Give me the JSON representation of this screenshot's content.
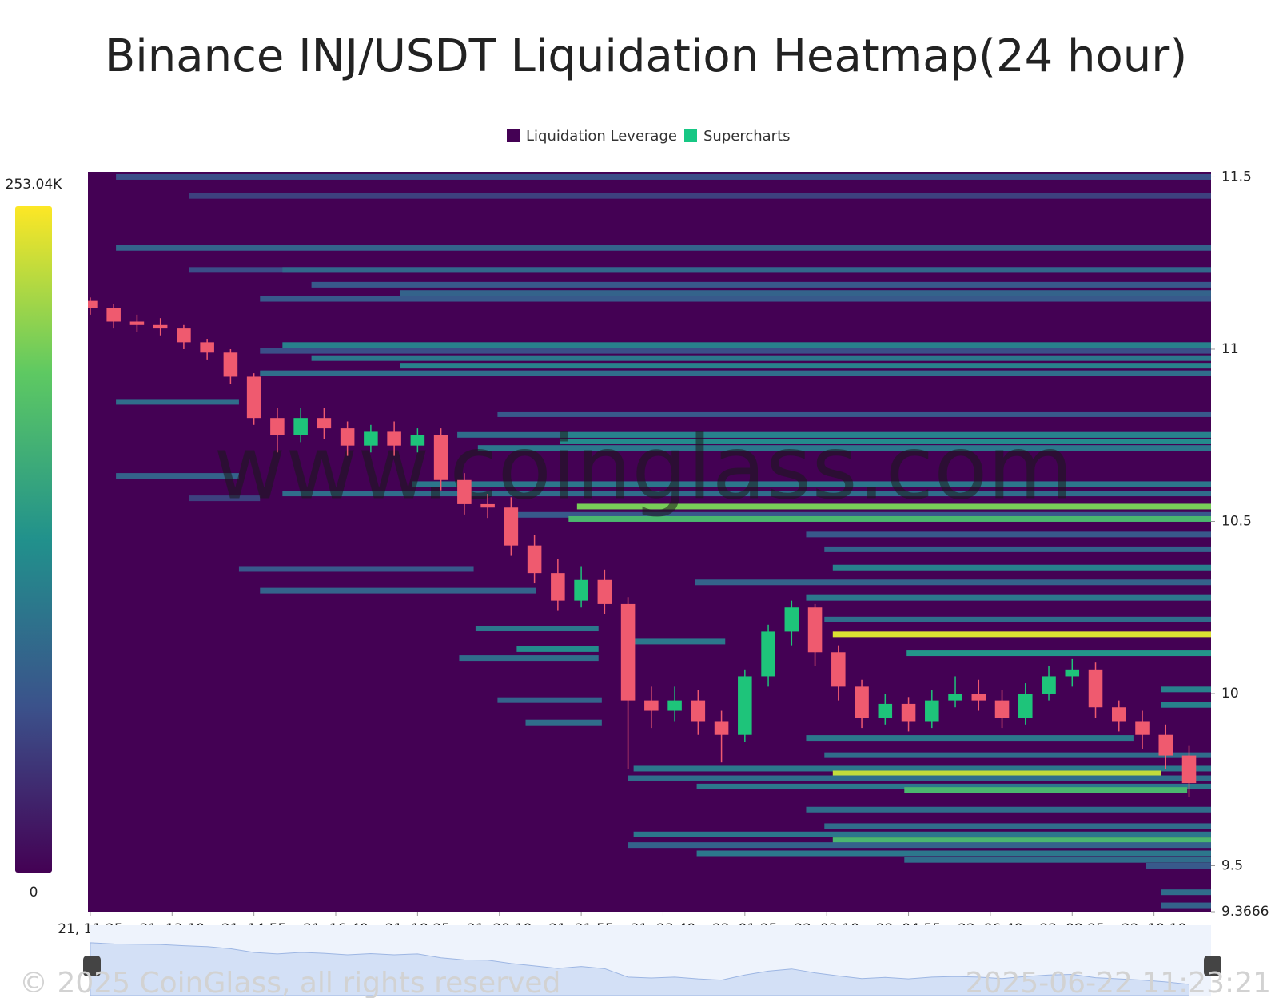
{
  "chart_data": {
    "type": "heatmap",
    "title": "Binance INJ/USDT Liquidation Heatmap(24 hour)",
    "watermark": "www.coinglass.com",
    "copyright": "© 2025 CoinGlass, all rights reserved",
    "timestamp": "2025-06-22 11:23:21",
    "xlim": [
      -0.05,
      23.97
    ],
    "xticks": [
      {
        "value": 0,
        "label": "21, 11:25"
      },
      {
        "value": 1.75,
        "label": "21, 13:10"
      },
      {
        "value": 3.5,
        "label": "21, 14:55"
      },
      {
        "value": 5.25,
        "label": "21, 16:40"
      },
      {
        "value": 7,
        "label": "21, 18:25"
      },
      {
        "value": 8.75,
        "label": "21, 20:10"
      },
      {
        "value": 10.5,
        "label": "21, 21:55"
      },
      {
        "value": 12.25,
        "label": "21, 23:40"
      },
      {
        "value": 14,
        "label": "22, 01:25"
      },
      {
        "value": 15.75,
        "label": "22, 03:10"
      },
      {
        "value": 17.5,
        "label": "22, 04:55"
      },
      {
        "value": 19.25,
        "label": "22, 06:40"
      },
      {
        "value": 21,
        "label": "22, 08:25"
      },
      {
        "value": 22.75,
        "label": "22, 10:10"
      }
    ],
    "ylim": [
      9.3666,
      11.515
    ],
    "yticks": [
      11.5,
      11,
      10.5,
      10,
      9.5,
      9.3666
    ],
    "colorbar": {
      "ticks": [
        0,
        {
          "value": 253040,
          "label": "253.04K"
        }
      ],
      "colorscale": [
        "#440154",
        "#3b528b",
        "#21918c",
        "#5ec962",
        "#fde725"
      ]
    },
    "series": [
      {
        "name": "Liquidation Leverage",
        "color": "#440154",
        "y": [
          11.5,
          11.445,
          11.294,
          11.23,
          11.23,
          11.187,
          11.163,
          11.146,
          11.012,
          10.995,
          10.974,
          10.952,
          10.93,
          10.847,
          10.811,
          10.751,
          10.751,
          10.732,
          10.713,
          10.632,
          10.608,
          10.581,
          10.567,
          10.543,
          10.519,
          10.507,
          10.462,
          10.419,
          10.366,
          10.362,
          10.323,
          10.299,
          10.278,
          10.215,
          10.189,
          10.172,
          10.151,
          10.129,
          10.117,
          10.103,
          10.012,
          9.981,
          9.967,
          9.916,
          9.871,
          9.821,
          9.782,
          9.768,
          9.754,
          9.73,
          9.72,
          9.663,
          9.615,
          9.591,
          9.574,
          9.56,
          9.536,
          9.517,
          9.5,
          9.423,
          9.385
        ],
        "x0": [
          0.55,
          2.12,
          0.55,
          2.12,
          4.11,
          4.73,
          6.63,
          3.63,
          4.11,
          3.63,
          4.73,
          6.63,
          3.63,
          0.55,
          8.71,
          7.85,
          10.05,
          10.05,
          8.29,
          0.55,
          6.88,
          4.11,
          2.12,
          10.41,
          9.12,
          10.23,
          15.31,
          15.7,
          15.88,
          3.18,
          12.93,
          3.63,
          15.31,
          15.7,
          8.24,
          15.88,
          11.62,
          9.12,
          17.46,
          7.89,
          22.9,
          8.71,
          22.9,
          9.31,
          15.31,
          15.7,
          11.62,
          15.88,
          11.5,
          12.97,
          17.41,
          15.31,
          15.7,
          11.62,
          15.88,
          11.5,
          12.97,
          17.41,
          22.58,
          22.9,
          22.9
        ],
        "x1": [
          23.97,
          23.97,
          23.97,
          23.97,
          23.97,
          23.97,
          23.97,
          23.97,
          23.97,
          23.97,
          23.97,
          23.97,
          23.97,
          3.18,
          23.97,
          23.97,
          23.97,
          23.97,
          23.97,
          3.18,
          23.97,
          23.97,
          3.63,
          23.97,
          23.97,
          23.97,
          23.97,
          23.97,
          23.97,
          8.2,
          23.97,
          9.53,
          23.97,
          23.97,
          10.87,
          23.97,
          13.58,
          10.87,
          23.97,
          10.87,
          23.97,
          10.94,
          23.97,
          10.94,
          22.31,
          23.97,
          23.97,
          22.9,
          23.97,
          23.97,
          23.46,
          23.97,
          23.97,
          23.97,
          23.97,
          23.97,
          23.97,
          23.97,
          23.97,
          23.97,
          23.97
        ],
        "values": [
          60000,
          50000,
          80000,
          60000,
          85000,
          70000,
          80000,
          70000,
          110000,
          60000,
          100000,
          110000,
          90000,
          90000,
          70000,
          90000,
          110000,
          120000,
          100000,
          80000,
          100000,
          90000,
          50000,
          200000,
          70000,
          170000,
          70000,
          80000,
          110000,
          70000,
          80000,
          80000,
          100000,
          90000,
          100000,
          240000,
          100000,
          120000,
          130000,
          90000,
          110000,
          80000,
          110000,
          90000,
          100000,
          90000,
          100000,
          230000,
          90000,
          100000,
          170000,
          90000,
          90000,
          100000,
          170000,
          80000,
          100000,
          90000,
          70000,
          90000,
          80000
        ]
      },
      {
        "name": "Supercharts",
        "color": "#17c784",
        "up_color": "#1ec47a",
        "down_color": "#ef5a6f",
        "x": [
          0,
          0.5,
          1,
          1.5,
          2,
          2.5,
          3,
          3.5,
          4,
          4.5,
          5,
          5.5,
          6,
          6.5,
          7,
          7.5,
          8,
          8.5,
          9,
          9.5,
          10,
          10.5,
          11,
          11.5,
          12,
          12.5,
          13,
          13.5,
          14,
          14.5,
          15,
          15.5,
          16,
          16.5,
          17,
          17.5,
          18,
          18.5,
          19,
          19.5,
          20,
          20.5,
          21,
          21.5,
          22,
          22.5,
          23,
          23.5
        ],
        "open": [
          11.14,
          11.12,
          11.08,
          11.07,
          11.06,
          11.02,
          10.99,
          10.92,
          10.8,
          10.75,
          10.8,
          10.77,
          10.72,
          10.76,
          10.72,
          10.75,
          10.62,
          10.55,
          10.54,
          10.43,
          10.35,
          10.27,
          10.33,
          10.26,
          9.98,
          9.95,
          9.98,
          9.92,
          9.88,
          10.05,
          10.18,
          10.25,
          10.12,
          10.02,
          9.93,
          9.97,
          9.92,
          9.98,
          10.0,
          9.98,
          9.93,
          10.0,
          10.05,
          10.07,
          9.96,
          9.92,
          9.88,
          9.82
        ],
        "high": [
          11.15,
          11.13,
          11.1,
          11.09,
          11.07,
          11.03,
          11.0,
          10.93,
          10.83,
          10.83,
          10.83,
          10.79,
          10.78,
          10.79,
          10.77,
          10.77,
          10.64,
          10.58,
          10.57,
          10.46,
          10.39,
          10.37,
          10.36,
          10.28,
          10.02,
          10.02,
          10.01,
          9.95,
          10.07,
          10.2,
          10.27,
          10.26,
          10.14,
          10.04,
          10.0,
          9.99,
          10.01,
          10.05,
          10.04,
          10.01,
          10.03,
          10.08,
          10.1,
          10.09,
          9.98,
          9.95,
          9.91,
          9.85
        ],
        "low": [
          11.1,
          11.06,
          11.05,
          11.04,
          11.0,
          10.97,
          10.9,
          10.78,
          10.7,
          10.73,
          10.74,
          10.69,
          10.7,
          10.69,
          10.7,
          10.59,
          10.52,
          10.51,
          10.4,
          10.32,
          10.24,
          10.25,
          10.23,
          9.78,
          9.9,
          9.92,
          9.88,
          9.8,
          9.86,
          10.02,
          10.14,
          10.08,
          9.98,
          9.9,
          9.91,
          9.89,
          9.9,
          9.96,
          9.95,
          9.9,
          9.91,
          9.98,
          10.02,
          9.93,
          9.89,
          9.84,
          9.78,
          9.7
        ],
        "close": [
          11.12,
          11.08,
          11.07,
          11.06,
          11.02,
          10.99,
          10.92,
          10.8,
          10.75,
          10.8,
          10.77,
          10.72,
          10.76,
          10.72,
          10.75,
          10.62,
          10.55,
          10.54,
          10.43,
          10.35,
          10.27,
          10.33,
          10.26,
          9.98,
          9.95,
          9.98,
          9.92,
          9.88,
          10.05,
          10.18,
          10.25,
          10.12,
          10.02,
          9.93,
          9.97,
          9.92,
          9.98,
          10.0,
          9.98,
          9.93,
          10.0,
          10.05,
          10.07,
          9.96,
          9.92,
          9.88,
          9.82,
          9.74
        ]
      }
    ]
  }
}
